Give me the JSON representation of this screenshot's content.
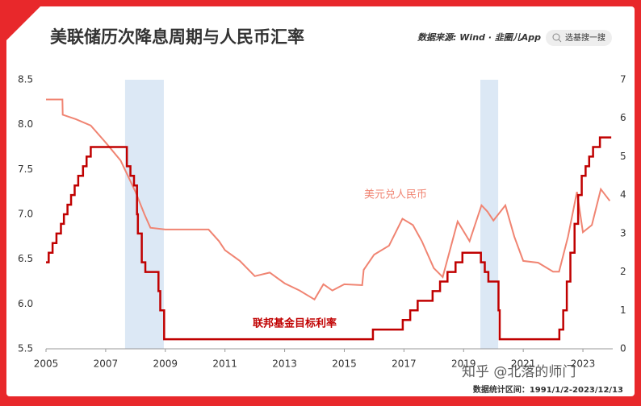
{
  "chart_data": {
    "type": "line",
    "title": "美联储历次降息周期与人民币汇率",
    "source": "数据来源: Wind · 韭圈儿App",
    "search_placeholder": "选基搜一搜",
    "period_note": "数据统计区间：1991/1/2-2023/12/13",
    "watermark": "知乎 @北落的师门",
    "xlim": [
      2005,
      2024
    ],
    "xticks": [
      2005,
      2007,
      2009,
      2011,
      2013,
      2015,
      2017,
      2019,
      2021,
      2023
    ],
    "ylim": [
      5.5,
      8.5
    ],
    "yticks": [
      5.5,
      {
        "value": 6,
        "label": "6.0"
      },
      6.5,
      {
        "value": 7,
        "label": "7.0"
      },
      7.5,
      {
        "value": 8,
        "label": "8.0"
      },
      8.5
    ],
    "y2lim": [
      0,
      7
    ],
    "y2ticks": [
      0,
      1,
      2,
      3,
      4,
      5,
      6,
      7
    ],
    "shaded_ranges": [
      [
        2007.65,
        2008.95
      ],
      [
        2019.56,
        2020.16
      ]
    ],
    "shade_color": "#dce8f5",
    "series": [
      {
        "name": "美元兑人民币",
        "color": "#f08472",
        "x": [
          2005.0,
          2005.55,
          2005.56,
          2006.0,
          2006.5,
          2007.0,
          2007.5,
          2008.0,
          2008.3,
          2008.5,
          2009.0,
          2010.0,
          2010.45,
          2010.8,
          2011.0,
          2011.5,
          2012.0,
          2012.5,
          2013.0,
          2013.5,
          2014.0,
          2014.3,
          2014.6,
          2015.0,
          2015.6,
          2015.65,
          2016.0,
          2016.5,
          2016.95,
          2017.3,
          2017.6,
          2018.0,
          2018.3,
          2018.8,
          2019.2,
          2019.6,
          2019.8,
          2020.0,
          2020.4,
          2020.7,
          2021.0,
          2021.5,
          2022.0,
          2022.2,
          2022.5,
          2022.8,
          2023.0,
          2023.3,
          2023.6,
          2023.9
        ],
        "values": [
          8.28,
          8.28,
          8.11,
          8.06,
          7.99,
          7.8,
          7.6,
          7.25,
          7.0,
          6.85,
          6.83,
          6.83,
          6.83,
          6.7,
          6.6,
          6.48,
          6.31,
          6.35,
          6.23,
          6.15,
          6.05,
          6.22,
          6.15,
          6.22,
          6.21,
          6.38,
          6.55,
          6.65,
          6.95,
          6.88,
          6.7,
          6.4,
          6.3,
          6.92,
          6.7,
          7.1,
          7.03,
          6.93,
          7.1,
          6.75,
          6.48,
          6.46,
          6.36,
          6.36,
          6.75,
          7.25,
          6.8,
          6.88,
          7.28,
          7.15
        ]
      },
      {
        "name": "联邦基金目标利率",
        "color": "#c00000",
        "axis": "y2",
        "step": true,
        "x": [
          2005.0,
          2005.09,
          2005.22,
          2005.35,
          2005.5,
          2005.6,
          2005.72,
          2005.84,
          2005.96,
          2006.08,
          2006.24,
          2006.36,
          2006.5,
          2007.71,
          2007.83,
          2007.95,
          2008.05,
          2008.08,
          2008.21,
          2008.33,
          2008.77,
          2008.83,
          2008.96,
          2015.96,
          2016.96,
          2017.21,
          2017.46,
          2017.96,
          2018.21,
          2018.46,
          2018.73,
          2018.96,
          2019.58,
          2019.71,
          2019.83,
          2020.17,
          2020.21,
          2022.21,
          2022.34,
          2022.46,
          2022.58,
          2022.72,
          2022.84,
          2022.96,
          2023.09,
          2023.21,
          2023.34,
          2023.57,
          2023.95
        ],
        "values": [
          2.25,
          2.5,
          2.75,
          3.0,
          3.25,
          3.5,
          3.75,
          4.0,
          4.25,
          4.5,
          4.75,
          5.0,
          5.25,
          4.75,
          4.5,
          4.25,
          3.5,
          3.0,
          2.25,
          2.0,
          1.5,
          1.0,
          0.25,
          0.5,
          0.75,
          1.0,
          1.25,
          1.5,
          1.75,
          2.0,
          2.25,
          2.5,
          2.25,
          2.0,
          1.75,
          1.0,
          0.25,
          0.5,
          1.0,
          1.75,
          2.5,
          3.25,
          4.0,
          4.5,
          4.75,
          5.0,
          5.25,
          5.5,
          5.5
        ]
      }
    ]
  }
}
